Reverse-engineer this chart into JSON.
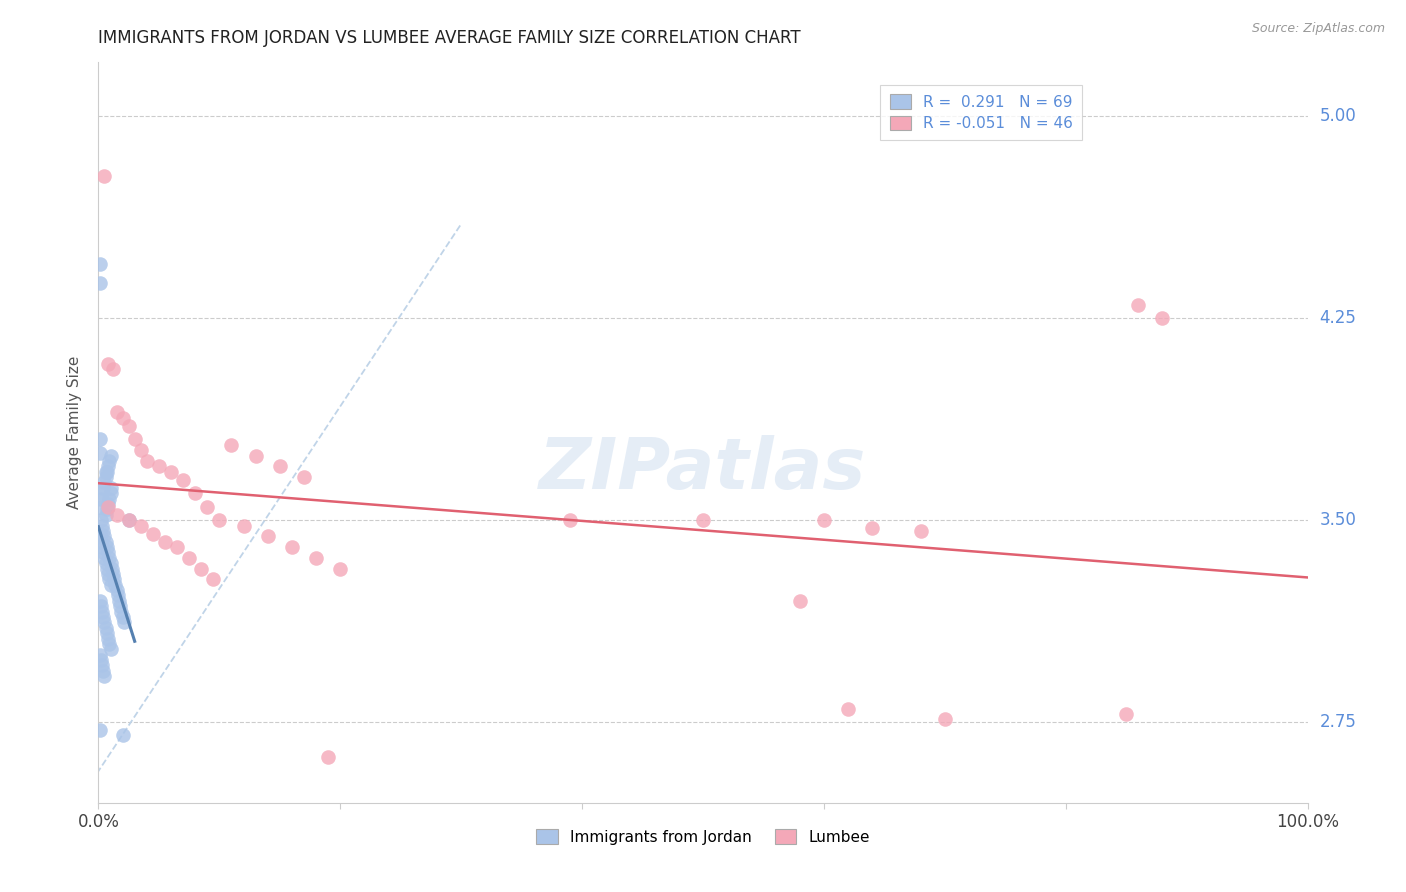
{
  "title": "IMMIGRANTS FROM JORDAN VS LUMBEE AVERAGE FAMILY SIZE CORRELATION CHART",
  "source": "Source: ZipAtlas.com",
  "ylabel": "Average Family Size",
  "xlim": [
    0,
    1.0
  ],
  "ylim": [
    2.45,
    5.2
  ],
  "yticks": [
    2.75,
    3.5,
    4.25,
    5.0
  ],
  "legend_r_jordan": " 0.291",
  "legend_n_jordan": "69",
  "legend_r_lumbee": "-0.051",
  "legend_n_lumbee": "46",
  "jordan_color": "#aac4e8",
  "lumbee_color": "#f4a8b8",
  "jordan_line_color": "#5580b0",
  "lumbee_line_color": "#e06070",
  "diagonal_color": "#c0d4e8",
  "background_color": "#ffffff",
  "jordan_scatter_x": [
    0.002,
    0.003,
    0.004,
    0.005,
    0.006,
    0.007,
    0.008,
    0.009,
    0.01,
    0.011,
    0.012,
    0.013,
    0.014,
    0.015,
    0.016,
    0.017,
    0.018,
    0.019,
    0.02,
    0.021,
    0.001,
    0.002,
    0.003,
    0.004,
    0.005,
    0.006,
    0.007,
    0.008,
    0.009,
    0.01,
    0.001,
    0.002,
    0.003,
    0.004,
    0.005,
    0.006,
    0.007,
    0.008,
    0.009,
    0.01,
    0.001,
    0.002,
    0.003,
    0.004,
    0.005,
    0.006,
    0.007,
    0.008,
    0.009,
    0.01,
    0.001,
    0.002,
    0.003,
    0.004,
    0.005,
    0.006,
    0.007,
    0.008,
    0.009,
    0.01,
    0.001,
    0.001,
    0.001,
    0.001,
    0.001,
    0.006,
    0.01,
    0.02,
    0.025
  ],
  "jordan_scatter_y": [
    3.5,
    3.48,
    3.46,
    3.44,
    3.42,
    3.4,
    3.38,
    3.36,
    3.34,
    3.32,
    3.3,
    3.28,
    3.26,
    3.24,
    3.22,
    3.2,
    3.18,
    3.16,
    3.14,
    3.12,
    3.55,
    3.58,
    3.6,
    3.62,
    3.64,
    3.66,
    3.68,
    3.7,
    3.72,
    3.74,
    3.45,
    3.42,
    3.4,
    3.38,
    3.36,
    3.34,
    3.32,
    3.3,
    3.28,
    3.26,
    3.2,
    3.18,
    3.16,
    3.14,
    3.12,
    3.1,
    3.08,
    3.06,
    3.04,
    3.02,
    3.0,
    2.98,
    2.96,
    2.94,
    2.92,
    3.52,
    3.54,
    3.56,
    3.58,
    3.6,
    4.45,
    4.38,
    3.8,
    3.75,
    2.72,
    3.68,
    3.62,
    2.7,
    3.5
  ],
  "lumbee_scatter_x": [
    0.005,
    0.008,
    0.012,
    0.015,
    0.02,
    0.025,
    0.03,
    0.035,
    0.04,
    0.05,
    0.06,
    0.07,
    0.08,
    0.09,
    0.1,
    0.12,
    0.14,
    0.16,
    0.18,
    0.2,
    0.008,
    0.015,
    0.025,
    0.035,
    0.045,
    0.055,
    0.065,
    0.075,
    0.085,
    0.095,
    0.11,
    0.13,
    0.15,
    0.17,
    0.19,
    0.39,
    0.5,
    0.6,
    0.64,
    0.68,
    0.7,
    0.86,
    0.88,
    0.62,
    0.58,
    0.85
  ],
  "lumbee_scatter_y": [
    4.78,
    4.08,
    4.06,
    3.9,
    3.88,
    3.85,
    3.8,
    3.76,
    3.72,
    3.7,
    3.68,
    3.65,
    3.6,
    3.55,
    3.5,
    3.48,
    3.44,
    3.4,
    3.36,
    3.32,
    3.55,
    3.52,
    3.5,
    3.48,
    3.45,
    3.42,
    3.4,
    3.36,
    3.32,
    3.28,
    3.78,
    3.74,
    3.7,
    3.66,
    2.62,
    3.5,
    3.5,
    3.5,
    3.47,
    3.46,
    2.76,
    4.3,
    4.25,
    2.8,
    3.2,
    2.78
  ],
  "title_fontsize": 12,
  "axis_fontsize": 11,
  "tick_fontsize": 12,
  "source_fontsize": 9
}
